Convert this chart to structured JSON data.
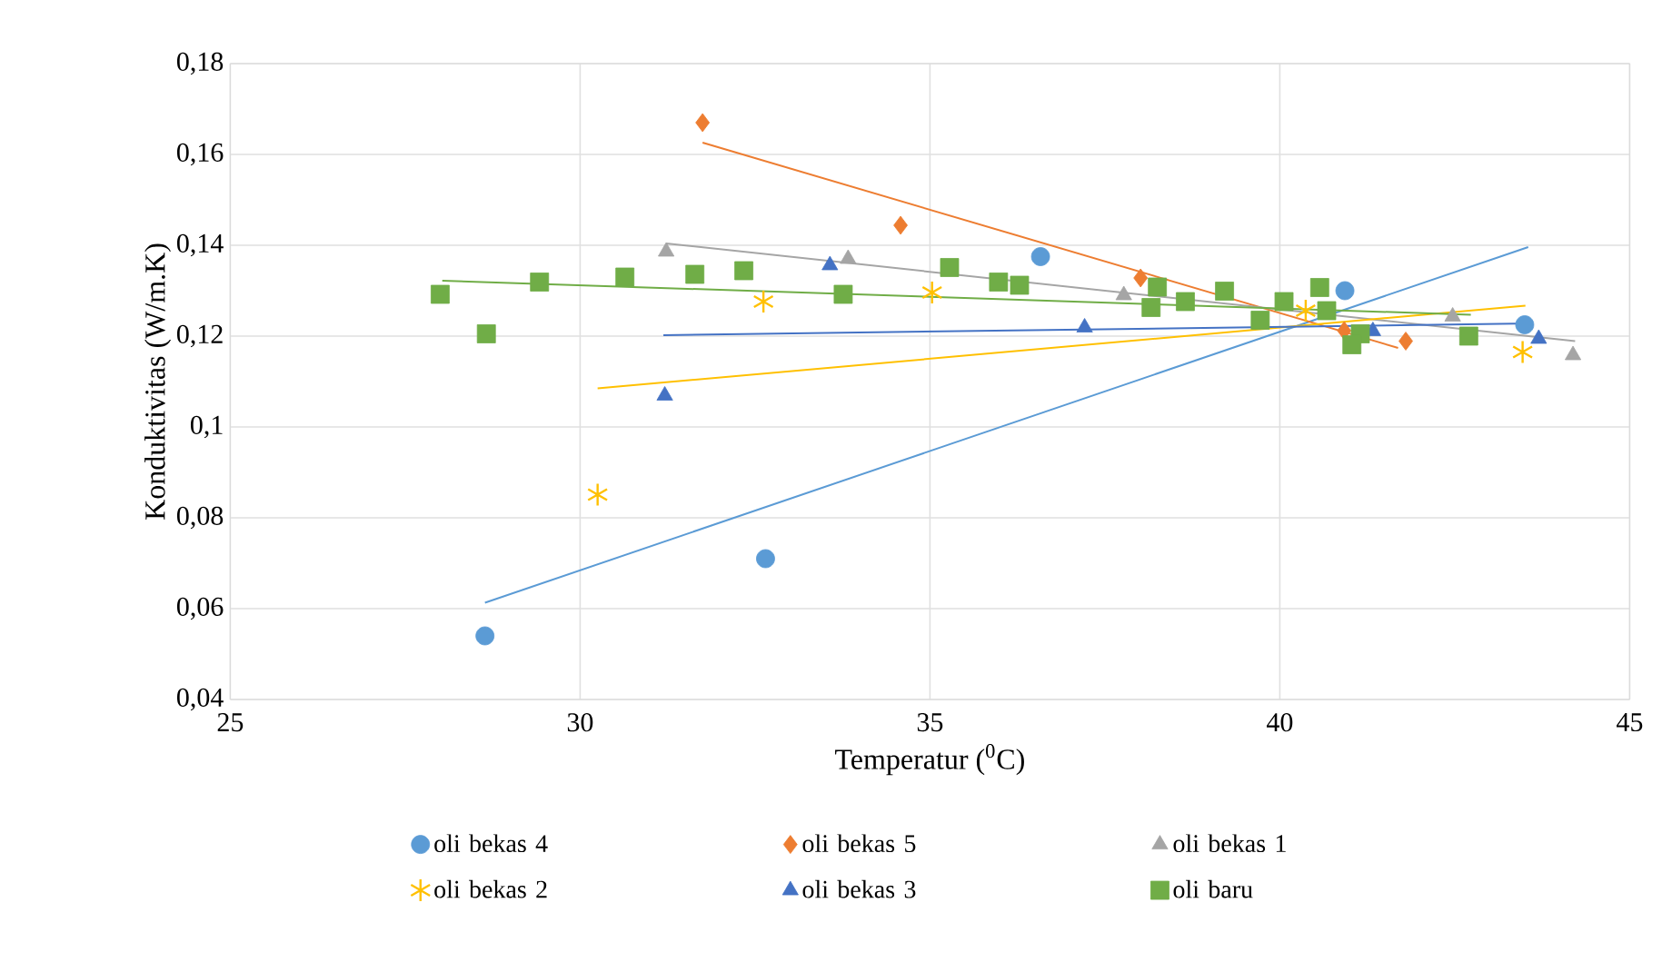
{
  "chart_data": {
    "type": "scatter",
    "xlabel": "Temperatur ($^{0}$C)",
    "ylabel": "Konduktivitas (W/m.K)",
    "xlim": [
      25,
      45
    ],
    "xticks": [
      25,
      30,
      35,
      40,
      45
    ],
    "ylim": [
      0.04,
      0.18
    ],
    "yticks": [
      {
        "value": 0.04,
        "label": "0,04"
      },
      {
        "value": 0.06,
        "label": "0,06"
      },
      {
        "value": 0.08,
        "label": "0,08"
      },
      {
        "value": 0.1,
        "label": "0,1"
      },
      {
        "value": 0.12,
        "label": "0,12"
      },
      {
        "value": 0.14,
        "label": "0,14"
      },
      {
        "value": 0.16,
        "label": "0,16"
      },
      {
        "value": 0.18,
        "label": "0,18"
      }
    ],
    "grid": true,
    "legend": "bottom",
    "series": [
      {
        "name": "oli bekas 4",
        "type": "scatter",
        "marker": "circle",
        "color": "#5b9bd5",
        "x": [
          28.64,
          32.65,
          36.58,
          40.93,
          43.5
        ],
        "values": [
          0.054,
          0.071,
          0.1375,
          0.13,
          0.1225
        ]
      },
      {
        "name": "oli bekas 5",
        "type": "scatter",
        "marker": "diamond",
        "color": "#ed7d31",
        "x": [
          31.75,
          34.58,
          38.01,
          40.92,
          41.8
        ],
        "values": [
          0.167,
          0.1444,
          0.1328,
          0.1212,
          0.1189
        ]
      },
      {
        "name": "oli bekas 1",
        "type": "scatter",
        "marker": "triangle",
        "color": "#a5a5a5",
        "x": [
          31.23,
          33.83,
          37.77,
          42.47,
          44.19
        ],
        "values": [
          0.1386,
          0.137,
          0.129,
          0.1243,
          0.1158
        ]
      },
      {
        "name": "oli bekas 2",
        "marker": "cross",
        "color": "#ffc000",
        "x": [
          30.25,
          32.62,
          35.03,
          40.37,
          43.47
        ],
        "values": [
          0.0851,
          0.1276,
          0.1296,
          0.1256,
          0.1165
        ]
      },
      {
        "name": "oli bekas 3",
        "type": "scatter",
        "marker": "triangle",
        "color": "#4472c4",
        "x": [
          31.21,
          33.57,
          37.21,
          41.33,
          43.7
        ],
        "values": [
          0.1069,
          0.1356,
          0.1219,
          0.1211,
          0.1194
        ]
      },
      {
        "name": "oli baru",
        "type": "scatter",
        "marker": "square",
        "color": "#70ad47",
        "x": [
          28.0,
          28.66,
          29.42,
          30.64,
          31.64,
          32.34,
          33.76,
          35.28,
          35.98,
          36.28,
          38.25,
          38.16,
          38.65,
          39.21,
          39.72,
          40.06,
          40.57,
          40.67,
          41.15,
          41.03,
          42.7
        ],
        "values": [
          0.1292,
          0.1205,
          0.1319,
          0.133,
          0.1336,
          0.1344,
          0.1292,
          0.1351,
          0.1319,
          0.1312,
          0.1308,
          0.1263,
          0.1276,
          0.1299,
          0.1235,
          0.1276,
          0.1307,
          0.1256,
          0.1205,
          0.1181,
          0.12
        ]
      },
      {
        "type": "line",
        "color": "#5b9bd5",
        "x": [
          28.64,
          43.55
        ],
        "values": [
          0.0613,
          0.1396
        ]
      },
      {
        "type": "line",
        "color": "#ed7d31",
        "x": [
          31.75,
          41.69
        ],
        "values": [
          0.1626,
          0.1174
        ]
      },
      {
        "type": "line",
        "color": "#a5a5a5",
        "x": [
          31.23,
          44.22
        ],
        "values": [
          0.1404,
          0.1189
        ]
      },
      {
        "type": "line",
        "color": "#ffc000",
        "x": [
          30.25,
          43.51
        ],
        "values": [
          0.1085,
          0.1267
        ]
      },
      {
        "type": "line",
        "color": "#4472c4",
        "x": [
          31.19,
          43.61
        ],
        "values": [
          0.1202,
          0.1228
        ]
      },
      {
        "type": "line",
        "color": "#70ad47",
        "x": [
          28.03,
          42.73
        ],
        "values": [
          0.1322,
          0.1247
        ]
      }
    ]
  }
}
